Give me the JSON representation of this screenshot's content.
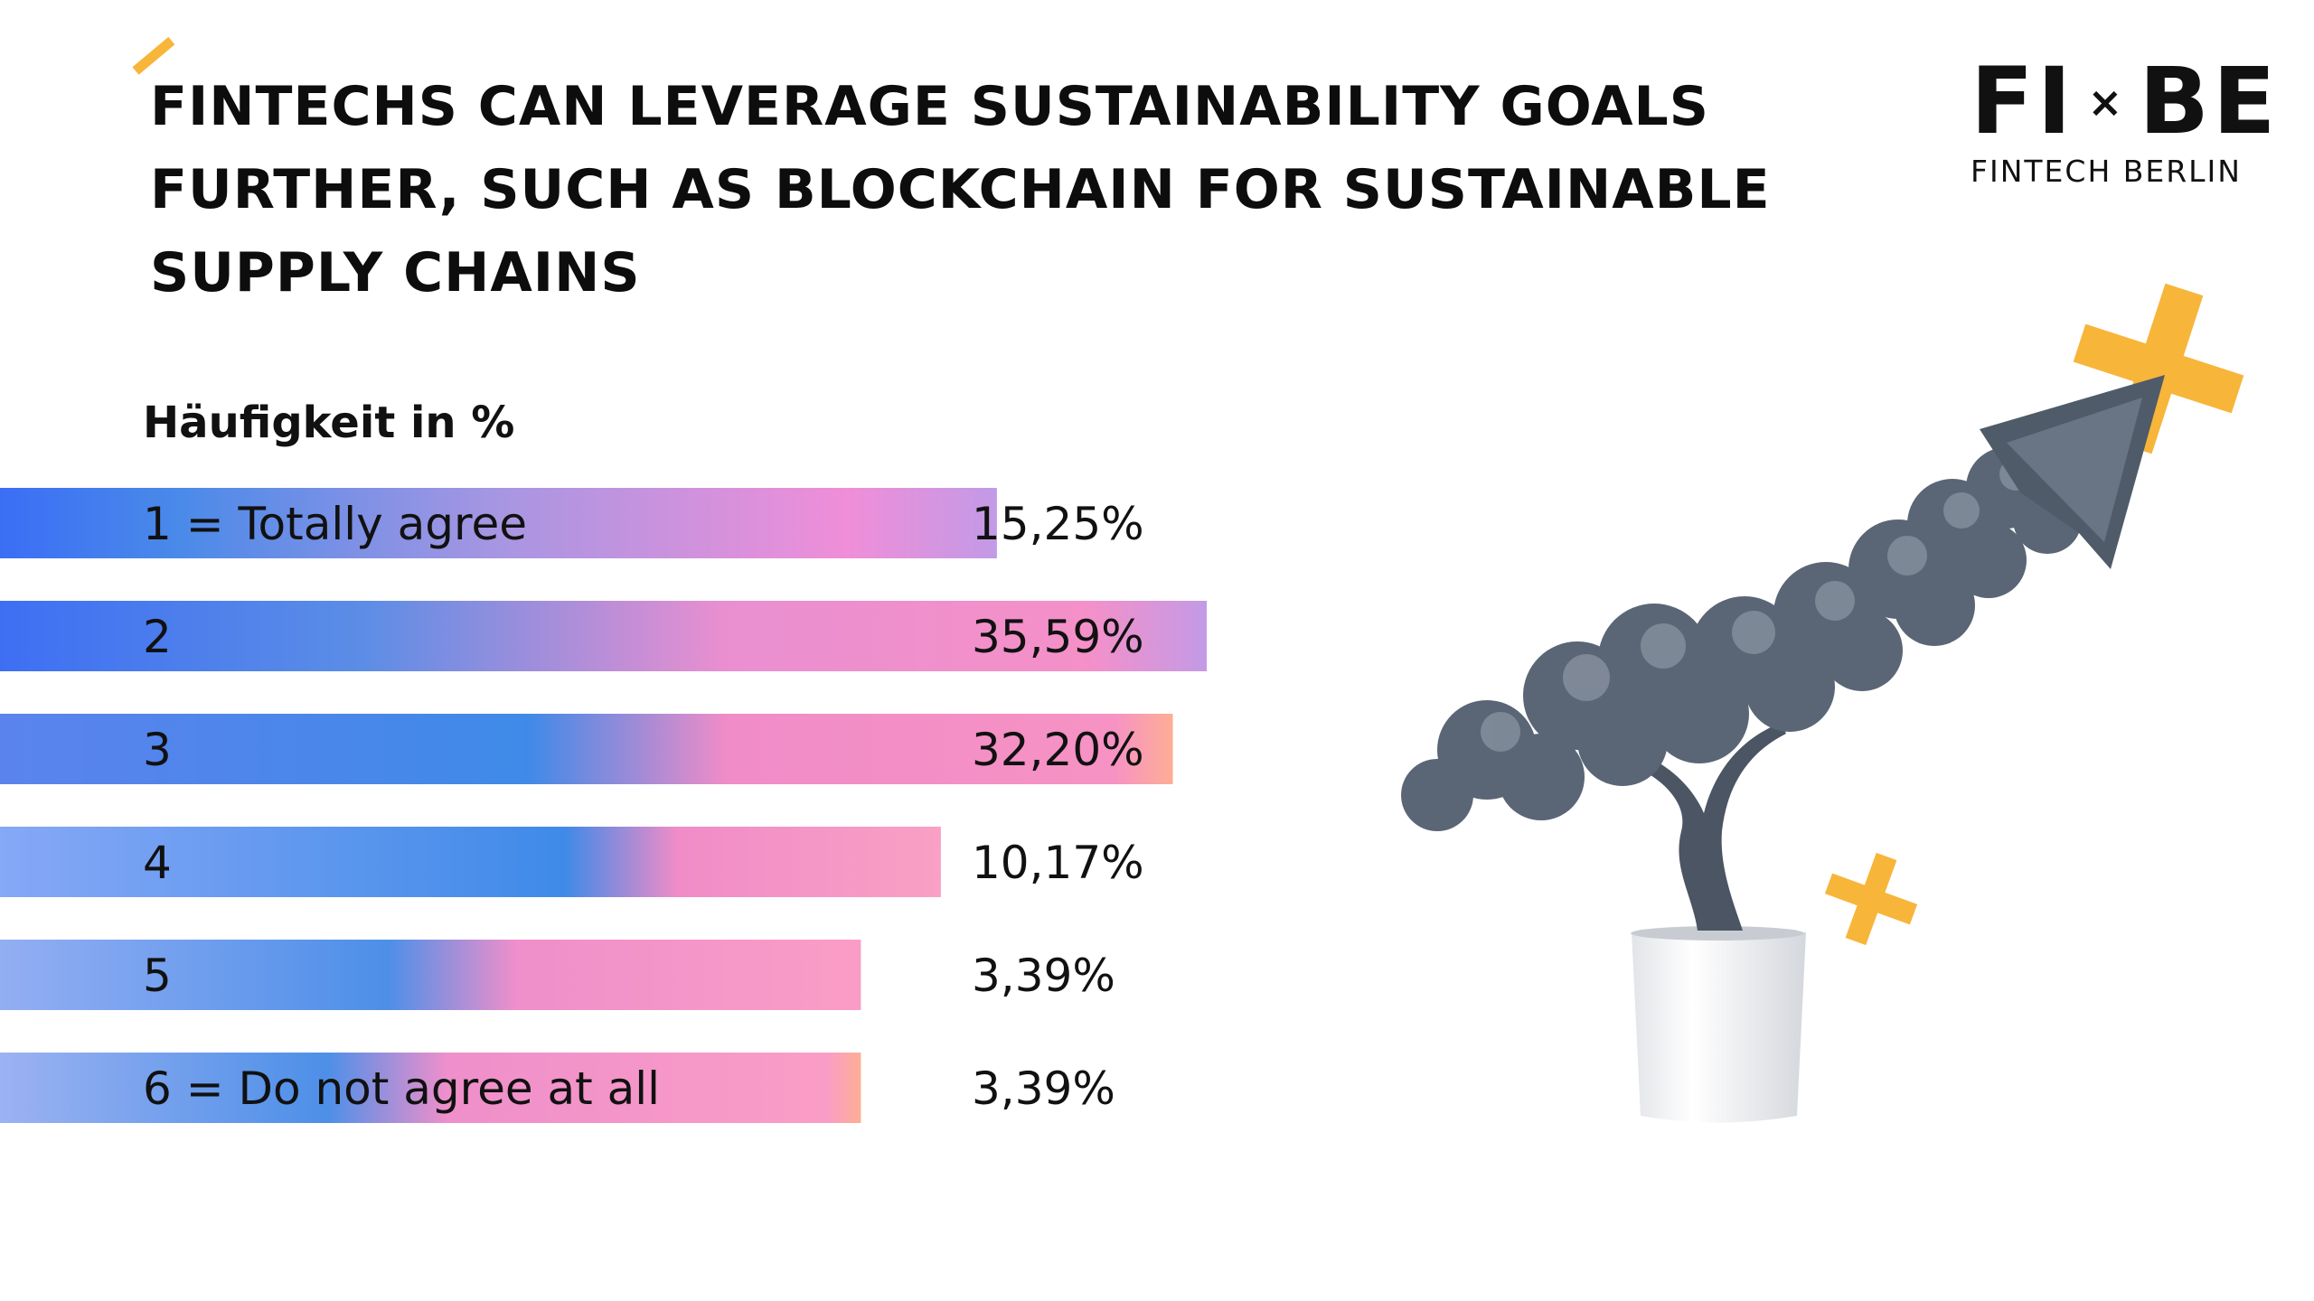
{
  "title": "FINTECHS CAN LEVERAGE SUSTAINABILITY GOALS FURTHER, SUCH AS BLOCKCHAIN FOR SUSTAINABLE SUPPLY CHAINS",
  "logo": {
    "mark_left": "FI",
    "mark_sep": "×",
    "mark_right": "BE",
    "subtitle": "FINTECH BERLIN"
  },
  "chart_data": {
    "type": "bar",
    "orientation": "horizontal",
    "ylabel": "Häufigkeit in %",
    "categories": [
      "1 = Totally agree",
      "2",
      "3",
      "4",
      "5",
      "6 = Do not agree at all"
    ],
    "values": [
      15.25,
      35.59,
      32.2,
      10.17,
      3.39,
      3.39
    ],
    "value_labels": [
      "15,25%",
      "35,59%",
      "32,20%",
      "10,17%",
      "3,39%",
      "3,39%"
    ],
    "grid": false,
    "legend": "none"
  },
  "colors": {
    "accent_yellow": "#f7b53a",
    "bar_blue": "#3b6ef5",
    "bar_mid_blue": "#4a90e8",
    "bar_pink": "#f590c8",
    "bar_violet": "#c39ae6",
    "bar_peach": "#fdae95"
  },
  "illustration": {
    "icon": "tree-arrow-in-pot-icon",
    "decor": "yellow-plus-icon"
  }
}
